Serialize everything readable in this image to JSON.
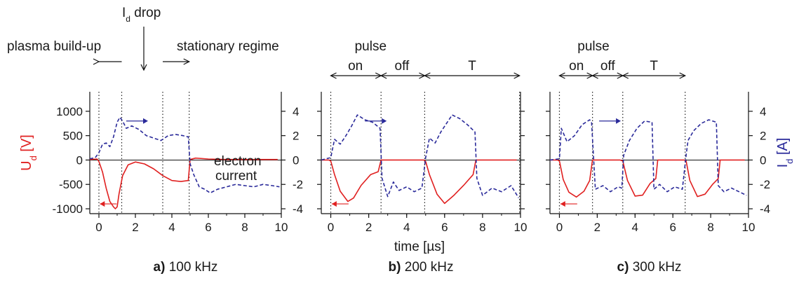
{
  "chart_data": [
    {
      "type": "line",
      "panel_letter": "a)",
      "panel_label": "100 kHz",
      "xlim": [
        -0.5,
        10
      ],
      "xticks": [
        0,
        2,
        4,
        6,
        8,
        10
      ],
      "ylabel_left": "U_d [V]",
      "ylim_left": [
        -1100,
        1400
      ],
      "yticks_left": [
        1000,
        500,
        0,
        -500,
        -1000
      ],
      "ylim_right": [
        -4.4,
        5.6
      ],
      "yticks_right": [
        4,
        2,
        0,
        -2,
        -4
      ],
      "vlines": [
        0,
        1.25,
        3.5,
        4.95
      ],
      "annotations": {
        "plasma": "plasma build-up",
        "stationary": "stationary regime",
        "id_drop_main": "I",
        "id_drop_sub": "d",
        "id_drop_rest": " drop",
        "electron1": "electron",
        "electron2": "current"
      },
      "series": [
        {
          "name": "U_d",
          "axis": "left",
          "color": "#e02020",
          "style": "solid",
          "x": [
            -0.5,
            -0.1,
            0.0,
            0.2,
            0.4,
            0.6,
            0.8,
            0.9,
            1.0,
            1.1,
            1.3,
            1.6,
            2.0,
            2.5,
            3.0,
            3.5,
            4.0,
            4.5,
            4.9,
            5.0,
            5.3,
            6.0,
            7.0,
            8.0,
            9.0,
            9.8
          ],
          "y": [
            10,
            20,
            -30,
            -250,
            -580,
            -850,
            -960,
            -1000,
            -960,
            -700,
            -320,
            -100,
            -40,
            -80,
            -180,
            -320,
            -420,
            -440,
            -420,
            10,
            40,
            20,
            10,
            10,
            10,
            10
          ]
        },
        {
          "name": "I_d",
          "axis": "right",
          "color": "#2a2a9a",
          "style": "dashed",
          "x": [
            -0.5,
            -0.2,
            0.0,
            0.2,
            0.4,
            0.6,
            0.8,
            1.0,
            1.15,
            1.3,
            1.5,
            1.8,
            2.2,
            2.6,
            3.0,
            3.4,
            3.8,
            4.2,
            4.6,
            4.9,
            5.0,
            5.2,
            5.5,
            5.8,
            6.1,
            6.5,
            7.0,
            7.5,
            8.0,
            8.5,
            9.0,
            9.5,
            9.9
          ],
          "y": [
            0.1,
            0.2,
            0.6,
            1.3,
            1.4,
            1.1,
            1.9,
            3.1,
            3.5,
            3.2,
            2.6,
            2.8,
            2.5,
            2.0,
            1.8,
            1.6,
            2.0,
            2.1,
            2.0,
            1.9,
            -0.3,
            -1.2,
            -2.2,
            -2.4,
            -2.7,
            -2.4,
            -2.2,
            -2.0,
            -2.1,
            -2.2,
            -2.0,
            -2.1,
            -2.2
          ]
        }
      ]
    },
    {
      "type": "line",
      "panel_letter": "b)",
      "panel_label": "200 kHz",
      "xlim": [
        -0.5,
        10
      ],
      "xticks": [
        0,
        2,
        4,
        6,
        8,
        10
      ],
      "ylim_left": [
        -1100,
        1400
      ],
      "ylim_right": [
        -4.4,
        5.6
      ],
      "vlines": [
        0,
        2.65,
        4.95,
        9.95
      ],
      "annotations": {
        "pulse": "pulse",
        "on": "on",
        "off": "off",
        "T": "T"
      },
      "series": [
        {
          "name": "U_d",
          "axis": "left",
          "color": "#e02020",
          "style": "solid",
          "x": [
            -0.5,
            -0.1,
            0.0,
            0.2,
            0.5,
            0.9,
            1.2,
            1.6,
            2.1,
            2.5,
            2.65,
            3.0,
            4.0,
            4.9,
            5.0,
            5.2,
            5.6,
            6.0,
            6.5,
            7.0,
            7.5,
            7.65,
            8.0,
            9.0,
            9.8
          ],
          "y": [
            0,
            0,
            -20,
            -300,
            -640,
            -850,
            -780,
            -520,
            -300,
            -240,
            0,
            0,
            0,
            0,
            -30,
            -300,
            -700,
            -890,
            -720,
            -520,
            -300,
            0,
            0,
            0,
            0
          ]
        },
        {
          "name": "I_d",
          "axis": "right",
          "color": "#2a2a9a",
          "style": "dashed",
          "x": [
            -0.5,
            0.0,
            0.2,
            0.5,
            0.8,
            1.1,
            1.4,
            1.8,
            2.2,
            2.6,
            2.7,
            3.0,
            3.3,
            3.6,
            4.0,
            4.4,
            4.8,
            5.0,
            5.2,
            5.5,
            5.8,
            6.1,
            6.4,
            6.8,
            7.2,
            7.6,
            7.7,
            8.0,
            8.5,
            9.0,
            9.5,
            9.9
          ],
          "y": [
            0,
            0.2,
            1.7,
            1.3,
            2.0,
            2.8,
            3.7,
            3.3,
            3.1,
            2.6,
            -1.5,
            -3.0,
            -1.8,
            -2.5,
            -2.2,
            -2.6,
            -2.3,
            0.2,
            1.8,
            1.4,
            2.3,
            3.0,
            3.7,
            3.4,
            2.9,
            2.3,
            -1.5,
            -2.9,
            -2.3,
            -2.6,
            -2.1,
            -3.1
          ]
        }
      ]
    },
    {
      "type": "line",
      "panel_letter": "c)",
      "panel_label": "300 kHz",
      "xlim": [
        -0.5,
        10
      ],
      "xticks": [
        0,
        2,
        4,
        6,
        8,
        10
      ],
      "ylabel_right": "I_d [A]",
      "ylim_left": [
        -1100,
        1400
      ],
      "ylim_right": [
        -4.4,
        5.6
      ],
      "yticks_right": [
        4,
        2,
        0,
        -2,
        -4
      ],
      "vlines": [
        0,
        1.75,
        3.35,
        6.65
      ],
      "annotations": {
        "pulse": "pulse",
        "on": "on",
        "off": "off",
        "T": "T"
      },
      "series": [
        {
          "name": "U_d",
          "axis": "left",
          "color": "#e02020",
          "style": "solid",
          "x": [
            -0.5,
            -0.1,
            0.0,
            0.2,
            0.5,
            0.9,
            1.3,
            1.6,
            1.75,
            2.0,
            3.2,
            3.35,
            3.6,
            4.0,
            4.4,
            4.8,
            5.1,
            5.2,
            5.5,
            6.6,
            6.7,
            6.9,
            7.3,
            7.7,
            8.1,
            8.4,
            8.5,
            8.8,
            9.8
          ],
          "y": [
            0,
            0,
            -20,
            -400,
            -660,
            -760,
            -640,
            -420,
            0,
            0,
            0,
            -20,
            -420,
            -740,
            -720,
            -480,
            -380,
            0,
            0,
            0,
            -20,
            -420,
            -750,
            -700,
            -500,
            -380,
            0,
            0,
            0
          ]
        },
        {
          "name": "I_d",
          "axis": "right",
          "color": "#2a2a9a",
          "style": "dashed",
          "x": [
            -0.5,
            0.0,
            0.1,
            0.4,
            0.8,
            1.2,
            1.6,
            1.7,
            1.9,
            2.3,
            2.7,
            3.1,
            3.3,
            3.4,
            3.7,
            4.1,
            4.5,
            4.9,
            5.0,
            5.3,
            5.7,
            6.1,
            6.5,
            6.7,
            6.8,
            7.1,
            7.5,
            7.9,
            8.3,
            8.4,
            8.7,
            9.1,
            9.5,
            9.9
          ],
          "y": [
            0,
            0.1,
            2.6,
            1.5,
            2.0,
            2.9,
            3.3,
            3.1,
            -2.4,
            -2.1,
            -2.6,
            -2.2,
            -2.3,
            0.4,
            1.6,
            2.6,
            3.2,
            3.1,
            -2.4,
            -2.0,
            -2.6,
            -2.2,
            -2.4,
            0.4,
            1.6,
            2.4,
            3.0,
            3.3,
            3.1,
            -2.1,
            -2.6,
            -2.3,
            -2.6,
            -2.9
          ]
        }
      ]
    }
  ],
  "shared": {
    "xlabel": "time [µs]"
  }
}
